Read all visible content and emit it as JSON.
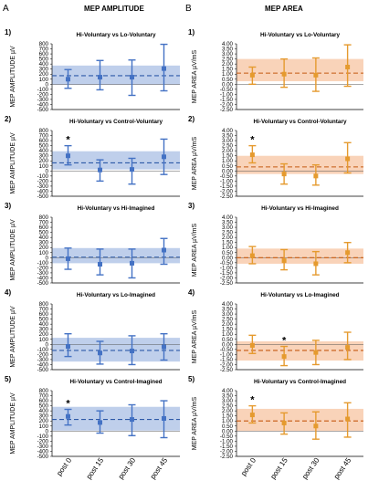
{
  "figure": {
    "letters": [
      "A",
      "B"
    ],
    "column_titles": [
      "MEP AMPLITUDE",
      "MEP AREA"
    ],
    "colors": {
      "amplitude": "#4472c4",
      "amplitude_band": "#b4c7e7",
      "area": "#e59a2e",
      "area_band": "#f8cbad",
      "mean_line_amp": "#2e5aa8",
      "mean_line_area": "#c55a11"
    }
  },
  "chart_data": [
    {
      "type": "scatter",
      "column": 0,
      "panel_number": "1)",
      "title": "Hi-Voluntary vs Lo-Voluntary",
      "ylabel": "MEP AMPLITUDE µV",
      "categories": [
        "post 0",
        "post 15",
        "post 30",
        "post 45"
      ],
      "ylim": [
        -500,
        800
      ],
      "yticks": [
        "800",
        "700",
        "600",
        "500",
        "400",
        "300",
        "200",
        "100",
        "0",
        "-100",
        "-200",
        "-300",
        "-400",
        "-500"
      ],
      "values": [
        100,
        140,
        140,
        310
      ],
      "err_low": [
        -80,
        -110,
        -220,
        -130
      ],
      "err_high": [
        290,
        470,
        480,
        790
      ],
      "band": [
        -10,
        370
      ],
      "mean_line": 170,
      "star_index": null
    },
    {
      "type": "scatter",
      "column": 0,
      "panel_number": "2)",
      "title": "Hi-Voluntary vs Control-Voluntary",
      "ylabel": "MEP AMPLITUDE µV",
      "categories": [
        "post 0",
        "post 15",
        "post 30",
        "post 45"
      ],
      "ylim": [
        -500,
        800
      ],
      "yticks": [
        "800",
        "700",
        "600",
        "500",
        "400",
        "300",
        "200",
        "100",
        "0",
        "-100",
        "-200",
        "-300",
        "-400",
        "-500"
      ],
      "values": [
        300,
        20,
        30,
        280
      ],
      "err_low": [
        120,
        -200,
        -260,
        -70
      ],
      "err_high": [
        500,
        220,
        250,
        630
      ],
      "band": [
        30,
        390
      ],
      "mean_line": 160,
      "star_index": 0
    },
    {
      "type": "scatter",
      "column": 0,
      "panel_number": "3)",
      "title": "Hi-Voluntary vs Hi-Imagined",
      "ylabel": "MEP AMPLITUDE µV",
      "categories": [
        "post 0",
        "post 15",
        "post 30",
        "post 45"
      ],
      "ylim": [
        -500,
        800
      ],
      "yticks": [
        "800",
        "700",
        "600",
        "500",
        "400",
        "300",
        "200",
        "100",
        "0",
        "-100",
        "-200",
        "-300",
        "-400",
        "-500"
      ],
      "values": [
        -20,
        -130,
        -110,
        150
      ],
      "err_low": [
        -230,
        -340,
        -400,
        -130
      ],
      "err_high": [
        190,
        170,
        170,
        380
      ],
      "band": [
        -110,
        190
      ],
      "mean_line": 10,
      "star_index": null
    },
    {
      "type": "scatter",
      "column": 0,
      "panel_number": "4)",
      "title": "Hi-Voluntary vs Lo-Imagined",
      "ylabel": "MEP AMPLITUDE µV",
      "categories": [
        "post 0",
        "post 15",
        "post 30",
        "post 45"
      ],
      "ylim": [
        -500,
        800
      ],
      "yticks": [
        "800",
        "700",
        "600",
        "500",
        "400",
        "300",
        "200",
        "100",
        "0",
        "-100",
        "-200",
        "-300",
        "-400",
        "-500"
      ],
      "values": [
        -40,
        -170,
        -130,
        -50
      ],
      "err_low": [
        -240,
        -390,
        -400,
        -310
      ],
      "err_high": [
        210,
        60,
        170,
        210
      ],
      "band": [
        -340,
        130
      ],
      "mean_line": -120,
      "star_index": null
    },
    {
      "type": "scatter",
      "column": 0,
      "panel_number": "5)",
      "title": "Hi-Voluntary vs Control-Imagined",
      "ylabel": "MEP AMPLITUDE µV",
      "categories": [
        "post 0",
        "post 15",
        "post 30",
        "post 45"
      ],
      "ylim": [
        -500,
        800
      ],
      "yticks": [
        "800",
        "700",
        "600",
        "500",
        "400",
        "300",
        "200",
        "100",
        "0",
        "-100",
        "-200",
        "-300",
        "-400",
        "-500"
      ],
      "values": [
        290,
        170,
        230,
        250
      ],
      "err_low": [
        120,
        -40,
        -90,
        -130
      ],
      "err_high": [
        430,
        400,
        520,
        600
      ],
      "band": [
        10,
        480
      ],
      "mean_line": 230,
      "star_index": 0
    },
    {
      "type": "scatter",
      "column": 1,
      "panel_number": "1)",
      "title": "Hi-Voluntary vs Lo-Voluntary",
      "ylabel": "MEP AREA µV/mS",
      "categories": [
        "post 0",
        "post 15",
        "post 30",
        "post 45"
      ],
      "ylim": [
        -2.5,
        4.0
      ],
      "yticks": [
        "4.00",
        "3.50",
        "3.00",
        "2.50",
        "2.00",
        "1.50",
        "1.00",
        "0.50",
        "0.00",
        "-0.50",
        "-1.00",
        "-1.50",
        "-2.00",
        "-2.50"
      ],
      "values": [
        0.9,
        1.0,
        0.9,
        1.7
      ],
      "err_low": [
        0.0,
        -0.3,
        -0.7,
        -0.2
      ],
      "err_high": [
        1.7,
        2.5,
        2.6,
        3.9
      ],
      "band": [
        0.3,
        2.5
      ],
      "mean_line": 1.1,
      "star_index": null
    },
    {
      "type": "scatter",
      "column": 1,
      "panel_number": "2)",
      "title": "Hi-Voluntary vs Control-Voluntary",
      "ylabel": "MEP AREA µV/mS",
      "categories": [
        "post 0",
        "post 15",
        "post 30",
        "post 45"
      ],
      "ylim": [
        -2.5,
        4.0
      ],
      "yticks": [
        "4.00",
        "3.50",
        "3.00",
        "2.50",
        "2.00",
        "1.50",
        "1.00",
        "0.50",
        "0.00",
        "-0.50",
        "-1.00",
        "-1.50",
        "-2.00",
        "-2.50"
      ],
      "values": [
        1.6,
        -0.3,
        -0.5,
        1.2
      ],
      "err_low": [
        0.8,
        -1.3,
        -1.4,
        -0.2
      ],
      "err_high": [
        2.5,
        0.7,
        0.6,
        2.8
      ],
      "band": [
        -0.3,
        1.5
      ],
      "mean_line": 0.4,
      "star_index": 0
    },
    {
      "type": "scatter",
      "column": 1,
      "panel_number": "3)",
      "title": "Hi-Voluntary vs Hi-Imagined",
      "ylabel": "MEP AREA µV/mS",
      "categories": [
        "post 0",
        "post 15",
        "post 30",
        "post 45"
      ],
      "ylim": [
        -2.5,
        4.0
      ],
      "yticks": [
        "4.00",
        "3.50",
        "3.00",
        "2.50",
        "2.00",
        "1.50",
        "1.00",
        "0.50",
        "0.00",
        "-0.50",
        "-1.00",
        "-1.50",
        "-2.00",
        "-2.50"
      ],
      "values": [
        0.2,
        -0.3,
        -0.6,
        0.5
      ],
      "err_low": [
        -0.6,
        -1.2,
        -1.7,
        -0.5
      ],
      "err_high": [
        1.1,
        0.8,
        0.6,
        1.5
      ],
      "band": [
        -0.6,
        0.9
      ],
      "mean_line": 0.0,
      "star_index": null
    },
    {
      "type": "scatter",
      "column": 1,
      "panel_number": "4)",
      "title": "Hi-Voluntary vs Lo-Imagined",
      "ylabel": "MEP AREA µV/mS",
      "categories": [
        "post 0",
        "post 15",
        "post 30",
        "post 45"
      ],
      "ylim": [
        -2.5,
        4.0
      ],
      "yticks": [
        "4.00",
        "3.50",
        "3.00",
        "2.50",
        "2.00",
        "1.50",
        "1.00",
        "0.50",
        "0.00",
        "-0.50",
        "-1.00",
        "-1.50",
        "-2.00",
        "-2.50"
      ],
      "values": [
        -0.1,
        -1.2,
        -0.8,
        -0.3
      ],
      "err_low": [
        -0.9,
        -2.1,
        -2.0,
        -1.5
      ],
      "err_high": [
        0.9,
        -0.2,
        0.4,
        1.2
      ],
      "band": [
        -1.6,
        0.3
      ],
      "mean_line": -0.6,
      "star_index": 1
    },
    {
      "type": "scatter",
      "column": 1,
      "panel_number": "5)",
      "title": "Hi-Voluntary vs Control-Imagined",
      "ylabel": "MEP AREA µV/mS",
      "categories": [
        "post 0",
        "post 15",
        "post 30",
        "post 45"
      ],
      "ylim": [
        -2.5,
        4.0
      ],
      "yticks": [
        "4.00",
        "3.50",
        "3.00",
        "2.50",
        "2.00",
        "1.50",
        "1.00",
        "0.50",
        "0.00",
        "-0.50",
        "-1.00",
        "-1.50",
        "-2.00",
        "-2.50"
      ],
      "values": [
        1.6,
        0.8,
        0.5,
        1.2
      ],
      "err_low": [
        0.8,
        -0.3,
        -0.8,
        -0.6
      ],
      "err_high": [
        2.5,
        1.8,
        1.9,
        2.8
      ],
      "band": [
        0.0,
        2.2
      ],
      "mean_line": 1.0,
      "star_index": 0
    }
  ]
}
